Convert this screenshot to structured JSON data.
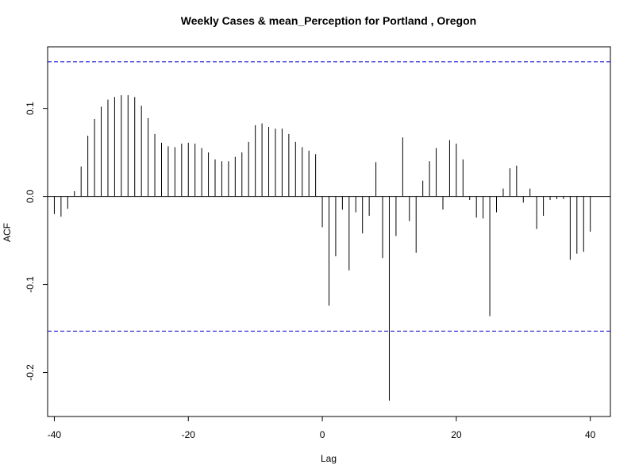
{
  "chart_data": {
    "type": "bar",
    "title": "Weekly Cases & mean_Perception for Portland , Oregon",
    "xlabel": "Lag",
    "ylabel": "ACF",
    "xlim": [
      -41,
      43
    ],
    "ylim": [
      -0.25,
      0.17
    ],
    "x_ticks": [
      -40,
      -20,
      0,
      20,
      40
    ],
    "x_tick_labels": [
      "-40",
      "-20",
      "0",
      "20",
      "40"
    ],
    "y_ticks": [
      -0.2,
      -0.1,
      0.0,
      0.1
    ],
    "y_tick_labels": [
      "-0.2",
      "-0.1",
      "0.0",
      "0.1"
    ],
    "confidence_bounds": [
      0.153,
      -0.153
    ],
    "colors": {
      "bars": "#000000",
      "confidence": "#0000cc",
      "zero_line": "#000000"
    },
    "lags": [
      -40,
      -39,
      -38,
      -37,
      -36,
      -35,
      -34,
      -33,
      -32,
      -31,
      -30,
      -29,
      -28,
      -27,
      -26,
      -25,
      -24,
      -23,
      -22,
      -21,
      -20,
      -19,
      -18,
      -17,
      -16,
      -15,
      -14,
      -13,
      -12,
      -11,
      -10,
      -9,
      -8,
      -7,
      -6,
      -5,
      -4,
      -3,
      -2,
      -1,
      0,
      1,
      2,
      3,
      4,
      5,
      6,
      7,
      8,
      9,
      10,
      11,
      12,
      13,
      14,
      15,
      16,
      17,
      18,
      19,
      20,
      21,
      22,
      23,
      24,
      25,
      26,
      27,
      28,
      29,
      30,
      31,
      32,
      33,
      34,
      35,
      36,
      37,
      38,
      39,
      40
    ],
    "values": [
      -0.02,
      -0.023,
      -0.014,
      0.006,
      0.034,
      0.069,
      0.088,
      0.102,
      0.11,
      0.113,
      0.115,
      0.115,
      0.113,
      0.103,
      0.089,
      0.071,
      0.061,
      0.057,
      0.056,
      0.06,
      0.061,
      0.06,
      0.055,
      0.05,
      0.042,
      0.04,
      0.04,
      0.045,
      0.05,
      0.062,
      0.081,
      0.083,
      0.079,
      0.077,
      0.077,
      0.071,
      0.062,
      0.056,
      0.052,
      0.048,
      -0.035,
      -0.124,
      -0.068,
      -0.015,
      -0.084,
      -0.018,
      -0.042,
      -0.022,
      0.039,
      -0.07,
      -0.232,
      -0.045,
      0.067,
      -0.028,
      -0.064,
      0.018,
      0.04,
      0.055,
      -0.015,
      0.064,
      0.06,
      0.042,
      -0.004,
      -0.024,
      -0.025,
      -0.136,
      -0.018,
      0.009,
      0.032,
      0.035,
      -0.007,
      0.009,
      -0.037,
      -0.022,
      -0.004,
      -0.003,
      -0.003,
      -0.072,
      -0.065,
      -0.063,
      -0.04
    ]
  }
}
